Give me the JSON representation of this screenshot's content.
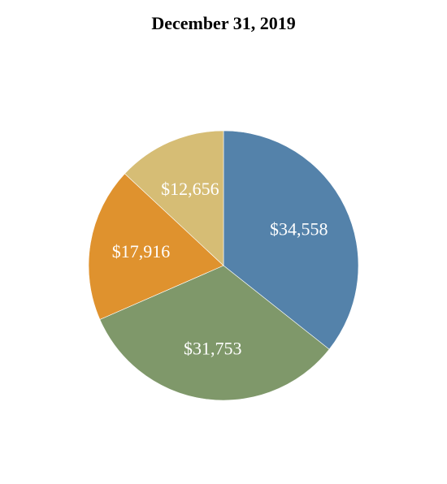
{
  "chart_data": {
    "type": "pie",
    "title": "December 31, 2019",
    "slices": [
      {
        "label": "$34,558",
        "value": 34558,
        "color": "#5482aa"
      },
      {
        "label": "$31,753",
        "value": 31753,
        "color": "#7f986a"
      },
      {
        "label": "$17,916",
        "value": 17916,
        "color": "#df922e"
      },
      {
        "label": "$12,656",
        "value": 12656,
        "color": "#d6bd75"
      }
    ],
    "start": "top",
    "direction": "clockwise",
    "legend": "none"
  }
}
